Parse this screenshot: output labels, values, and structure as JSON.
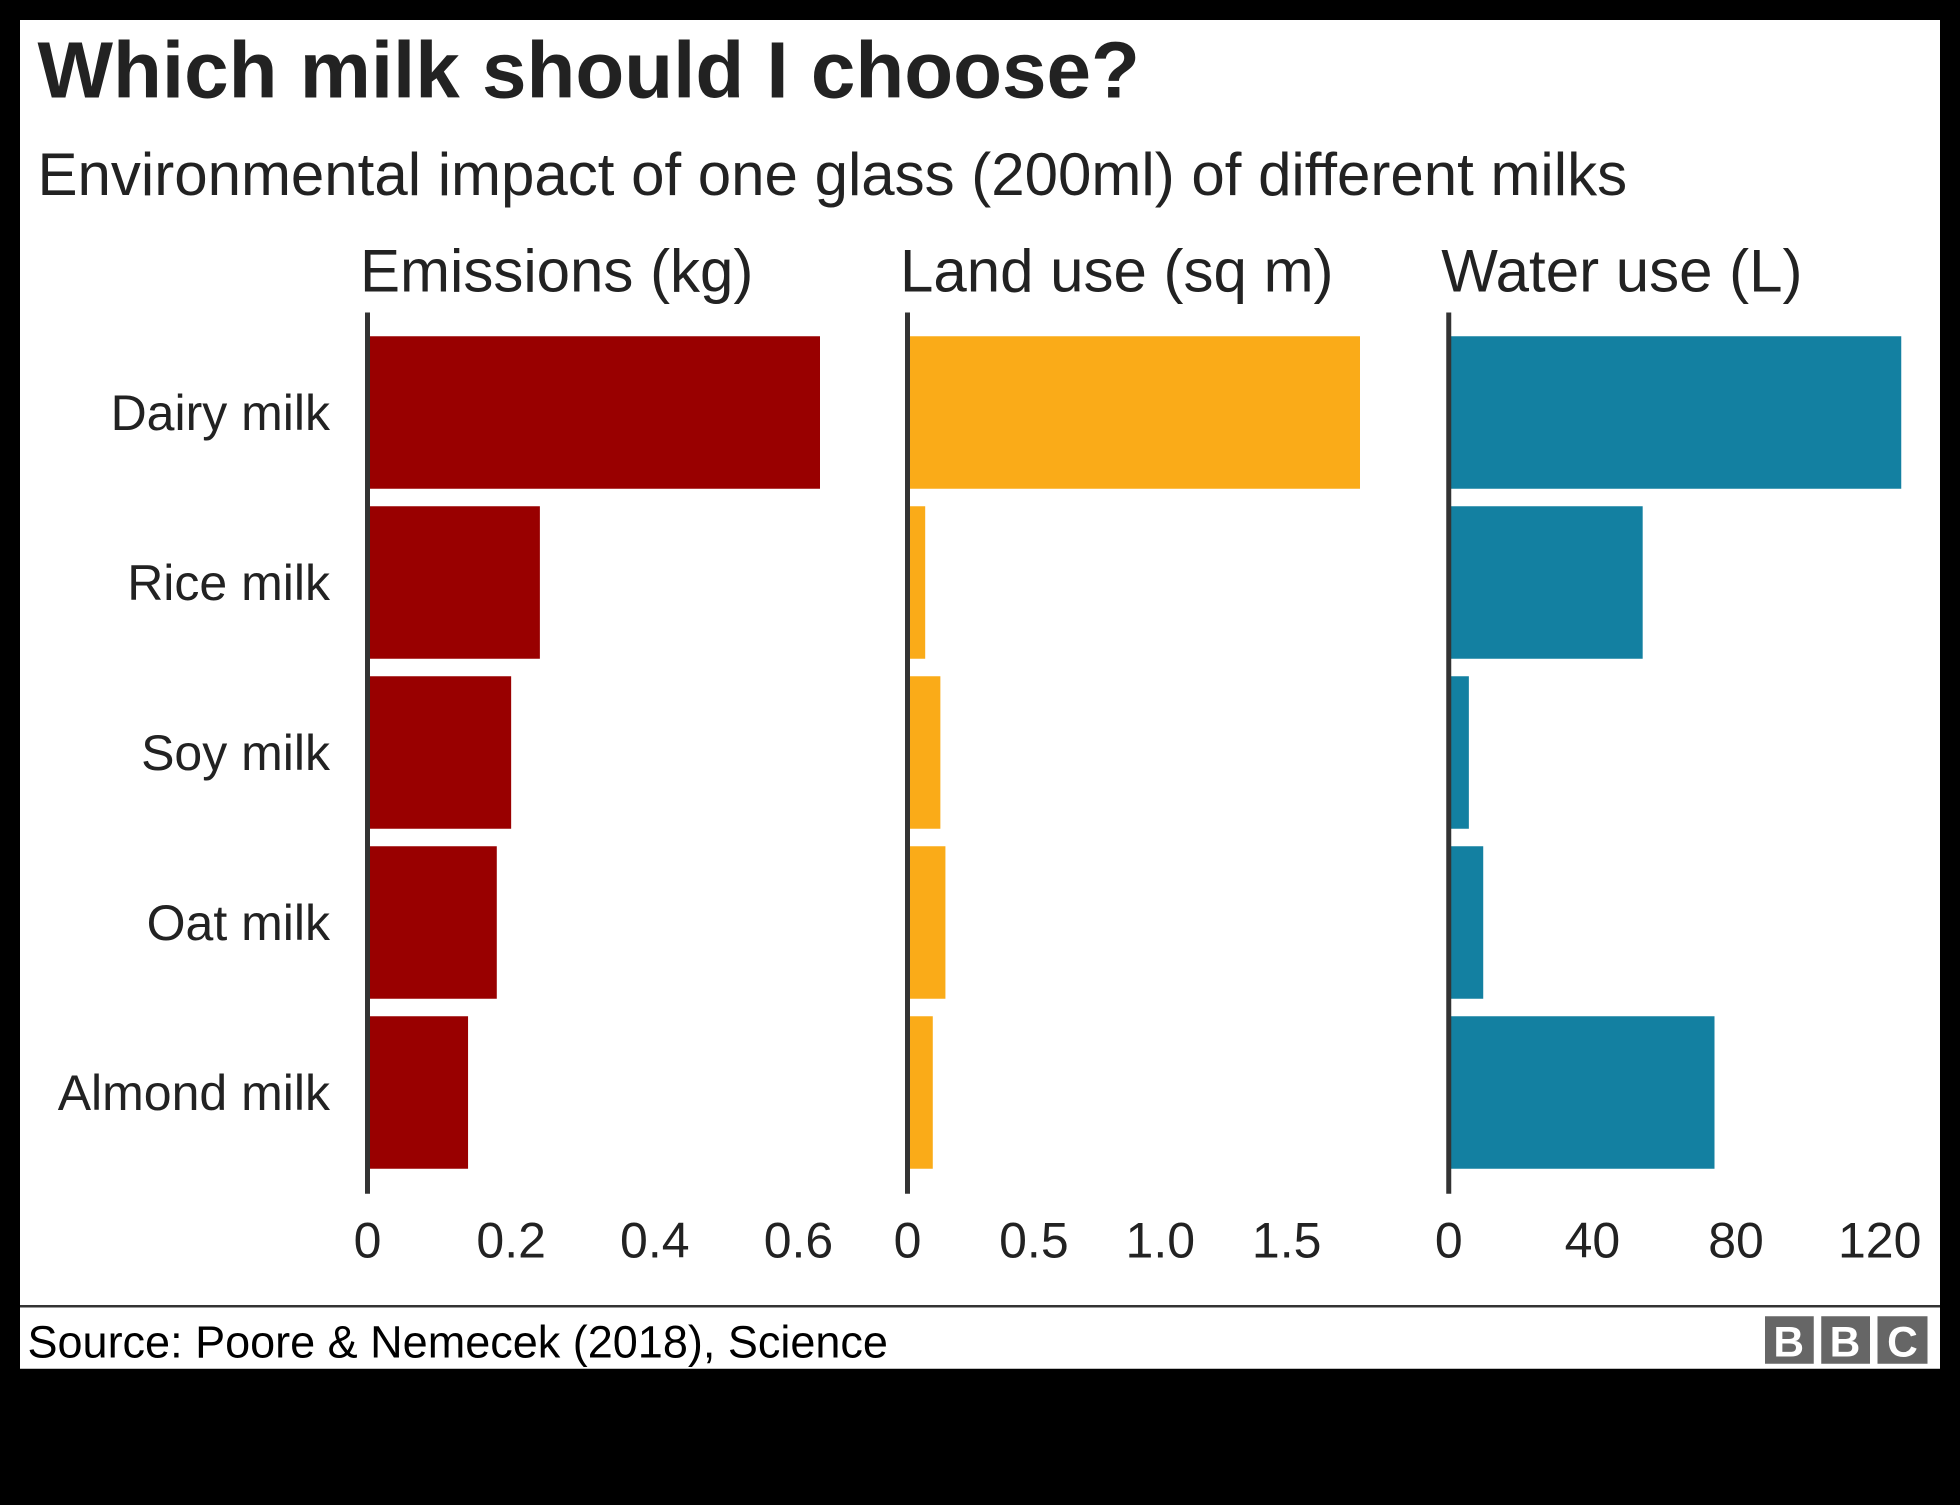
{
  "chart_data": [
    {
      "type": "bar",
      "orientation": "horizontal",
      "title": "Emissions (kg)",
      "categories": [
        "Dairy milk",
        "Rice milk",
        "Soy milk",
        "Oat milk",
        "Almond milk"
      ],
      "values": [
        0.63,
        0.24,
        0.2,
        0.18,
        0.14
      ],
      "xlim": [
        0,
        0.63
      ],
      "ticks": [
        "0",
        "0.2",
        "0.4",
        "0.6"
      ],
      "tick_values": [
        0,
        0.2,
        0.4,
        0.6
      ],
      "color": "#990000"
    },
    {
      "type": "bar",
      "orientation": "horizontal",
      "title": "Land use (sq m)",
      "categories": [
        "Dairy milk",
        "Rice milk",
        "Soy milk",
        "Oat milk",
        "Almond milk"
      ],
      "values": [
        1.79,
        0.07,
        0.13,
        0.15,
        0.1
      ],
      "xlim": [
        0,
        1.79
      ],
      "ticks": [
        "0",
        "0.5",
        "1.0",
        "1.5"
      ],
      "tick_values": [
        0,
        0.5,
        1.0,
        1.5
      ],
      "color": "#FAAB18"
    },
    {
      "type": "bar",
      "orientation": "horizontal",
      "title": "Water use (L)",
      "categories": [
        "Dairy milk",
        "Rice milk",
        "Soy milk",
        "Oat milk",
        "Almond milk"
      ],
      "values": [
        126,
        54,
        5.6,
        9.6,
        74
      ],
      "xlim": [
        0,
        126
      ],
      "ticks": [
        "0",
        "40",
        "80",
        "120"
      ],
      "tick_values": [
        0,
        40,
        80,
        120
      ],
      "color": "#1380A1"
    }
  ],
  "title": "Which milk should I choose?",
  "subtitle": "Environmental impact of one glass (200ml) of different milks",
  "categories": [
    "Dairy milk",
    "Rice milk",
    "Soy milk",
    "Oat milk",
    "Almond milk"
  ],
  "source": "Source: Poore & Nemecek (2018), Science",
  "logo": "BBC"
}
